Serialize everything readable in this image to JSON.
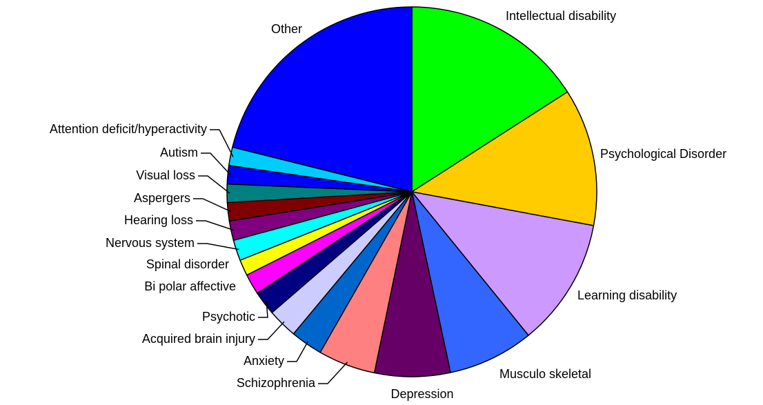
{
  "chart_data": {
    "type": "pie",
    "categories": [
      "Intellectual disability",
      "Psychological Disorder",
      "Learning disability",
      "Musculo skeletal",
      "Depression",
      "Schizophrenia",
      "Anxiety",
      "Acquired brain injury",
      "Psychotic",
      "Bi polar affective",
      "Spinal disorder",
      "Nervous system",
      "Hearing loss",
      "Aspergers",
      "Visual loss",
      "Autism",
      "Attention deficit/hyperactivity",
      "Other"
    ],
    "values": [
      15.9,
      12.0,
      11.2,
      7.5,
      6.6,
      5.0,
      2.8,
      2.6,
      2.1,
      1.8,
      1.4,
      1.8,
      1.7,
      1.6,
      1.6,
      1.6,
      1.6,
      21.1
    ],
    "colors": [
      "#00ff00",
      "#ffcc00",
      "#cc99ff",
      "#3366ff",
      "#660066",
      "#ff8080",
      "#0066cc",
      "#ccccff",
      "#000080",
      "#ff00ff",
      "#ffff00",
      "#00ffff",
      "#800080",
      "#800000",
      "#008080",
      "#0000ff",
      "#00ccff",
      "#0000ff"
    ]
  }
}
